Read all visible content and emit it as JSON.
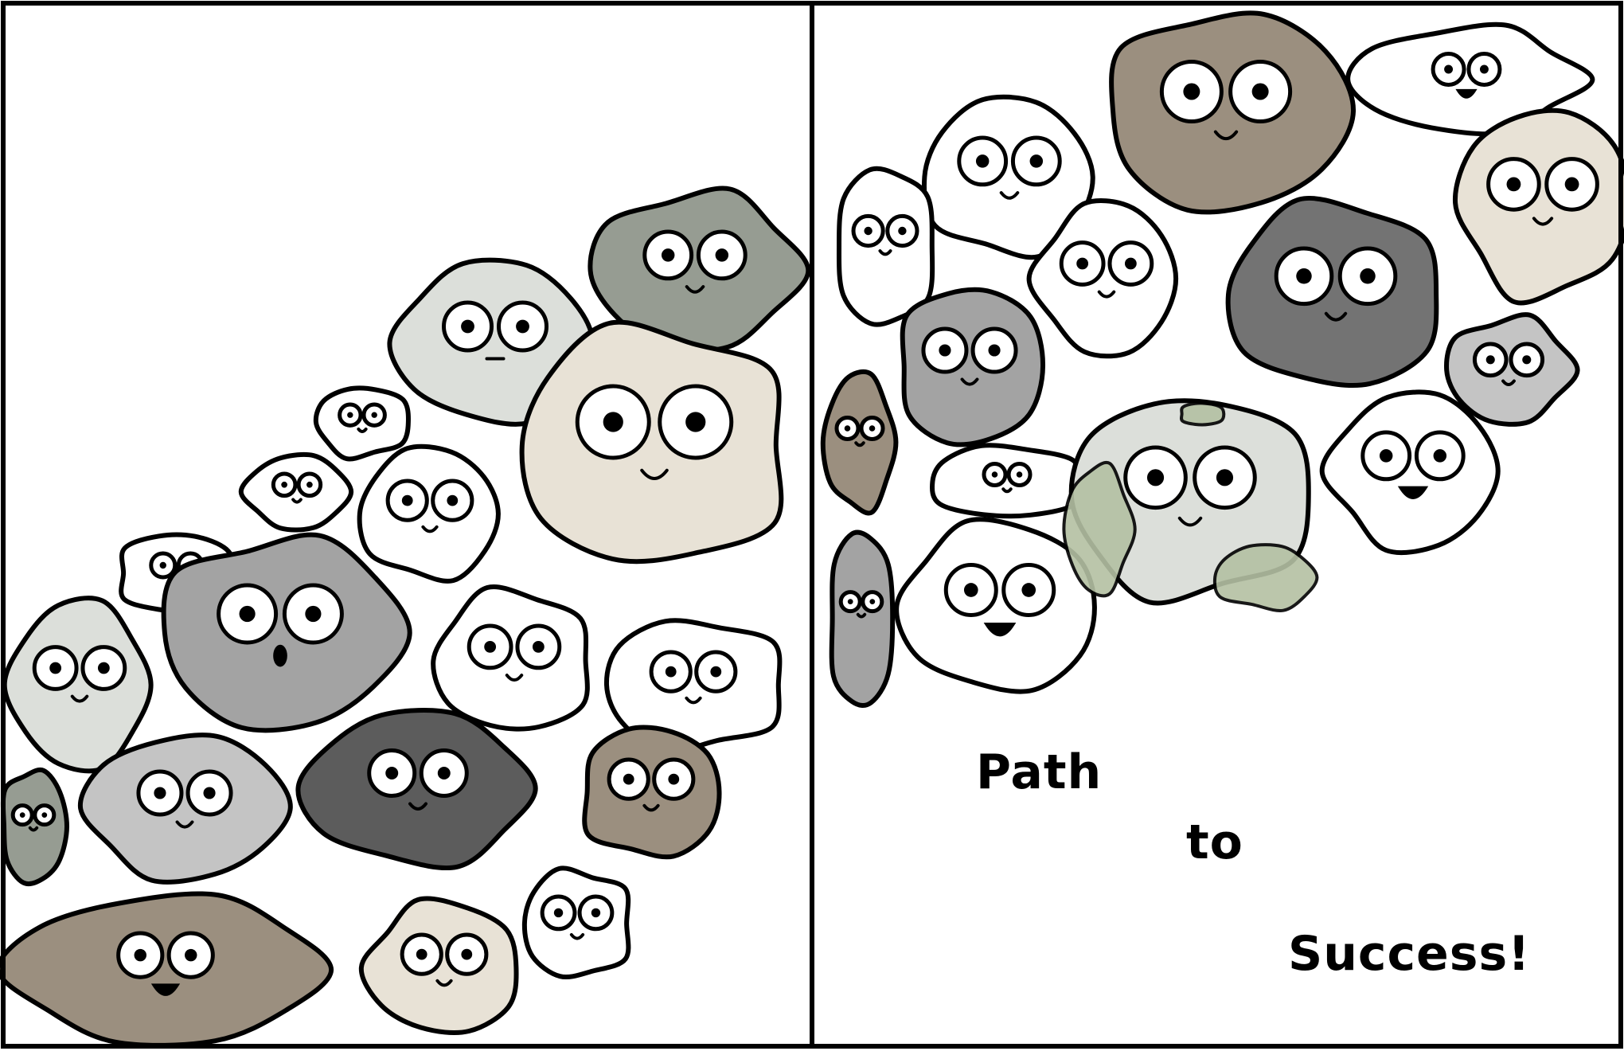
{
  "comic": {
    "caption": {
      "word1": "Path",
      "word2": "to",
      "word3": "Success!"
    },
    "colors": {
      "outline": "#000000",
      "background": "#ffffff",
      "white": "#ffffff",
      "light_gray": "#dcdfda",
      "gray": "#a3a3a3",
      "silver": "#c4c4c4",
      "sage": "#969c92",
      "dark_gray": "#5c5c5c",
      "charcoal": "#737373",
      "taupe": "#9b8f7f",
      "cream": "#e8e2d6",
      "moss": "#b4c0a3"
    },
    "panels": [
      {
        "name": "left-panel",
        "content": "pebbles"
      },
      {
        "name": "right-panel",
        "content": "pebbles-and-caption"
      }
    ]
  }
}
